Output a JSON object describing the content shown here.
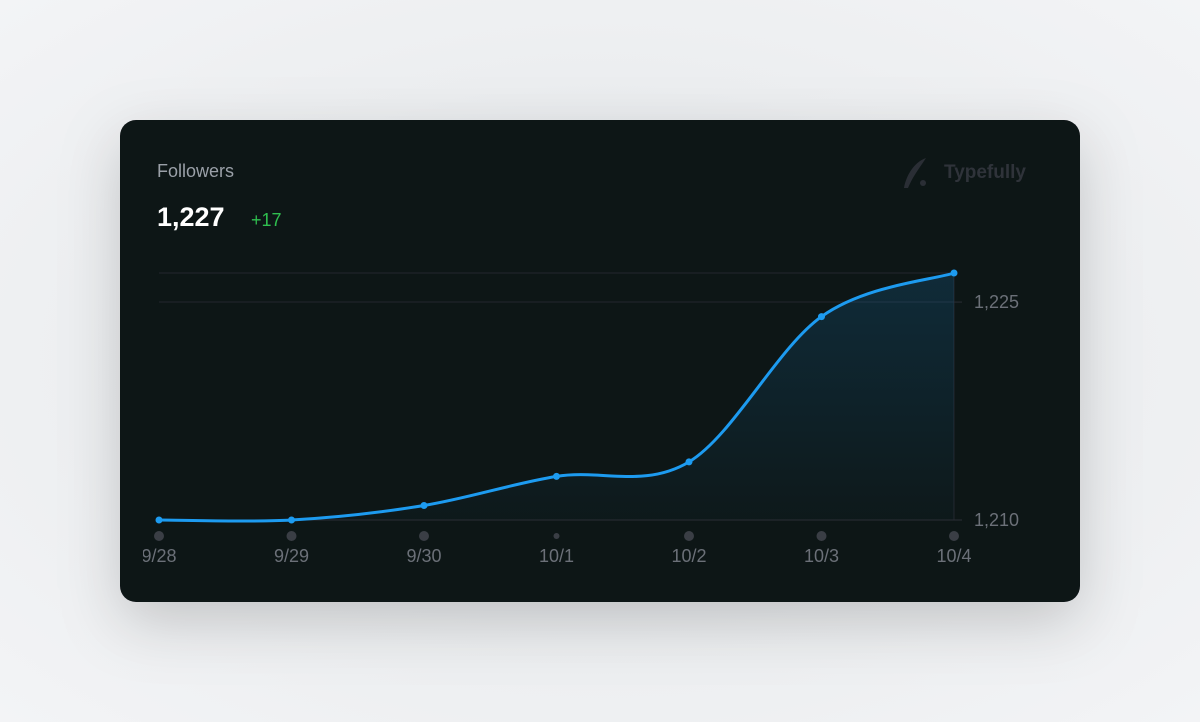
{
  "header": {
    "title": "Followers",
    "value": "1,227",
    "change": "+17",
    "brand": "Typefully"
  },
  "chart_data": {
    "type": "line",
    "categories": [
      "9/28",
      "9/29",
      "9/30",
      "10/1",
      "10/2",
      "10/3",
      "10/4"
    ],
    "series": [
      {
        "name": "Followers",
        "color": "#1d9bf0",
        "values": [
          1210,
          1210,
          1211,
          1213,
          1214,
          1224,
          1227
        ]
      }
    ],
    "ylim": [
      1210,
      1227
    ],
    "yticks": [
      {
        "value": 1210,
        "label": "1,210"
      },
      {
        "value": 1225,
        "label": "1,225"
      }
    ],
    "grid": true
  }
}
